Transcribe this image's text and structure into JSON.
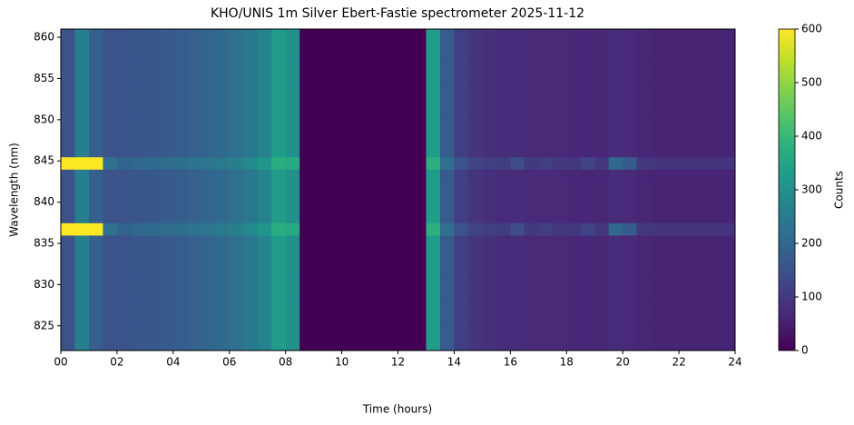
{
  "chart_data": {
    "type": "heatmap",
    "title": "KHO/UNIS 1m Silver Ebert-Fastie spectrometer 2025-11-12",
    "xlabel": "Time (hours)",
    "ylabel": "Wavelength (nm)",
    "colorbar_label": "Counts",
    "colormap": "viridis",
    "clim": [
      0,
      600
    ],
    "xlim": [
      0,
      24
    ],
    "ylim": [
      822,
      861
    ],
    "xticks": [
      {
        "value": 0,
        "label": "00"
      },
      {
        "value": 2,
        "label": "02"
      },
      {
        "value": 4,
        "label": "04"
      },
      {
        "value": 6,
        "label": "06"
      },
      {
        "value": 8,
        "label": "08"
      },
      10,
      12,
      14,
      16,
      18,
      20,
      22,
      24
    ],
    "yticks": [
      825,
      830,
      835,
      840,
      845,
      850,
      855,
      860
    ],
    "cticks": [
      0,
      100,
      200,
      300,
      400,
      500,
      600
    ],
    "xbins": [
      0,
      0.5,
      1,
      1.5,
      2,
      2.5,
      3,
      3.5,
      4,
      4.5,
      5,
      5.5,
      6,
      6.5,
      7,
      7.5,
      8,
      8.5,
      9,
      9.5,
      10,
      10.5,
      11,
      11.5,
      12,
      12.5,
      13,
      13.5,
      14,
      14.5,
      15,
      15.5,
      16,
      16.5,
      17,
      17.5,
      18,
      18.5,
      19,
      19.5,
      20,
      20.5,
      21,
      21.5,
      22,
      22.5,
      23,
      23.5,
      24
    ],
    "ybins": [
      822,
      825,
      828,
      831,
      834,
      836,
      837.5,
      840,
      843,
      844,
      845.5,
      848,
      851,
      854,
      857,
      861
    ],
    "values": [
      [
        150,
        260,
        180,
        150,
        150,
        160,
        165,
        170,
        175,
        185,
        195,
        205,
        220,
        240,
        270,
        330,
        300,
        0,
        0,
        0,
        0,
        0,
        0,
        0,
        0,
        0,
        330,
        170,
        110,
        90,
        80,
        75,
        75,
        70,
        70,
        70,
        65,
        65,
        65,
        75,
        70,
        65,
        60,
        60,
        60,
        60,
        60,
        60
      ],
      [
        150,
        260,
        180,
        150,
        150,
        160,
        165,
        170,
        175,
        185,
        195,
        205,
        220,
        240,
        270,
        330,
        300,
        0,
        0,
        0,
        0,
        0,
        0,
        0,
        0,
        0,
        330,
        170,
        110,
        90,
        80,
        75,
        75,
        70,
        70,
        70,
        65,
        65,
        65,
        75,
        70,
        65,
        60,
        60,
        60,
        60,
        60,
        60
      ],
      [
        150,
        260,
        180,
        150,
        150,
        160,
        165,
        170,
        175,
        185,
        195,
        205,
        220,
        240,
        270,
        330,
        300,
        0,
        0,
        0,
        0,
        0,
        0,
        0,
        0,
        0,
        330,
        170,
        110,
        90,
        80,
        75,
        75,
        70,
        70,
        70,
        65,
        65,
        65,
        75,
        70,
        65,
        60,
        60,
        60,
        60,
        60,
        60
      ],
      [
        150,
        260,
        180,
        150,
        150,
        160,
        165,
        170,
        175,
        185,
        195,
        205,
        220,
        240,
        270,
        330,
        300,
        0,
        0,
        0,
        0,
        0,
        0,
        0,
        0,
        0,
        330,
        170,
        110,
        90,
        80,
        75,
        75,
        70,
        70,
        70,
        65,
        65,
        65,
        75,
        70,
        65,
        60,
        60,
        60,
        60,
        60,
        60
      ],
      [
        150,
        260,
        180,
        150,
        150,
        160,
        165,
        170,
        175,
        185,
        195,
        205,
        220,
        240,
        270,
        330,
        300,
        0,
        0,
        0,
        0,
        0,
        0,
        0,
        0,
        0,
        330,
        170,
        110,
        90,
        80,
        75,
        75,
        70,
        70,
        70,
        65,
        65,
        65,
        75,
        70,
        65,
        60,
        60,
        60,
        60,
        60,
        60
      ],
      [
        600,
        600,
        600,
        220,
        190,
        200,
        205,
        210,
        215,
        225,
        235,
        245,
        260,
        280,
        310,
        370,
        360,
        0,
        0,
        0,
        0,
        0,
        0,
        0,
        0,
        0,
        380,
        220,
        150,
        120,
        110,
        105,
        140,
        100,
        110,
        100,
        95,
        120,
        95,
        200,
        170,
        95,
        90,
        90,
        90,
        90,
        90,
        90
      ],
      [
        150,
        260,
        180,
        150,
        150,
        160,
        165,
        170,
        175,
        185,
        195,
        205,
        220,
        240,
        270,
        330,
        300,
        0,
        0,
        0,
        0,
        0,
        0,
        0,
        0,
        0,
        330,
        170,
        110,
        90,
        80,
        75,
        75,
        70,
        70,
        70,
        65,
        65,
        65,
        75,
        70,
        65,
        60,
        60,
        60,
        60,
        60,
        60
      ],
      [
        150,
        260,
        180,
        150,
        150,
        160,
        165,
        170,
        175,
        185,
        195,
        205,
        220,
        240,
        270,
        330,
        300,
        0,
        0,
        0,
        0,
        0,
        0,
        0,
        0,
        0,
        330,
        170,
        110,
        90,
        80,
        75,
        75,
        70,
        70,
        70,
        65,
        65,
        65,
        75,
        70,
        65,
        60,
        60,
        60,
        60,
        60,
        60
      ],
      [
        150,
        260,
        180,
        150,
        150,
        160,
        165,
        170,
        175,
        185,
        195,
        205,
        220,
        240,
        270,
        330,
        300,
        0,
        0,
        0,
        0,
        0,
        0,
        0,
        0,
        0,
        330,
        170,
        110,
        90,
        80,
        75,
        75,
        70,
        70,
        70,
        65,
        65,
        65,
        75,
        70,
        65,
        60,
        60,
        60,
        60,
        60,
        60
      ],
      [
        600,
        600,
        600,
        220,
        190,
        200,
        205,
        210,
        215,
        225,
        235,
        245,
        260,
        280,
        310,
        370,
        360,
        0,
        0,
        0,
        0,
        0,
        0,
        0,
        0,
        0,
        380,
        220,
        150,
        120,
        110,
        105,
        140,
        100,
        110,
        100,
        95,
        120,
        95,
        200,
        170,
        95,
        90,
        90,
        90,
        90,
        90,
        90
      ],
      [
        150,
        260,
        180,
        150,
        150,
        160,
        165,
        170,
        175,
        185,
        195,
        205,
        220,
        240,
        270,
        330,
        300,
        0,
        0,
        0,
        0,
        0,
        0,
        0,
        0,
        0,
        330,
        170,
        110,
        90,
        80,
        75,
        75,
        70,
        70,
        70,
        65,
        65,
        65,
        75,
        70,
        65,
        60,
        60,
        60,
        60,
        60,
        60
      ],
      [
        150,
        260,
        180,
        150,
        150,
        160,
        165,
        170,
        175,
        185,
        195,
        205,
        220,
        240,
        270,
        330,
        300,
        0,
        0,
        0,
        0,
        0,
        0,
        0,
        0,
        0,
        330,
        170,
        110,
        90,
        80,
        75,
        75,
        70,
        70,
        70,
        65,
        65,
        65,
        75,
        70,
        65,
        60,
        60,
        60,
        60,
        60,
        60
      ],
      [
        150,
        260,
        180,
        150,
        150,
        160,
        165,
        170,
        175,
        185,
        195,
        205,
        220,
        240,
        270,
        330,
        300,
        0,
        0,
        0,
        0,
        0,
        0,
        0,
        0,
        0,
        330,
        170,
        110,
        90,
        80,
        75,
        75,
        70,
        70,
        70,
        65,
        65,
        65,
        75,
        70,
        65,
        60,
        60,
        60,
        60,
        60,
        60
      ],
      [
        150,
        260,
        180,
        150,
        150,
        160,
        165,
        170,
        175,
        185,
        195,
        205,
        220,
        240,
        270,
        330,
        300,
        0,
        0,
        0,
        0,
        0,
        0,
        0,
        0,
        0,
        330,
        170,
        110,
        90,
        80,
        75,
        75,
        70,
        70,
        70,
        65,
        65,
        65,
        75,
        70,
        65,
        60,
        60,
        60,
        60,
        60,
        60
      ],
      [
        150,
        260,
        180,
        150,
        150,
        160,
        165,
        170,
        175,
        185,
        195,
        205,
        220,
        240,
        270,
        330,
        300,
        0,
        0,
        0,
        0,
        0,
        0,
        0,
        0,
        0,
        330,
        170,
        110,
        90,
        80,
        75,
        75,
        70,
        70,
        70,
        65,
        65,
        65,
        75,
        70,
        65,
        60,
        60,
        60,
        60,
        60,
        60
      ]
    ]
  }
}
